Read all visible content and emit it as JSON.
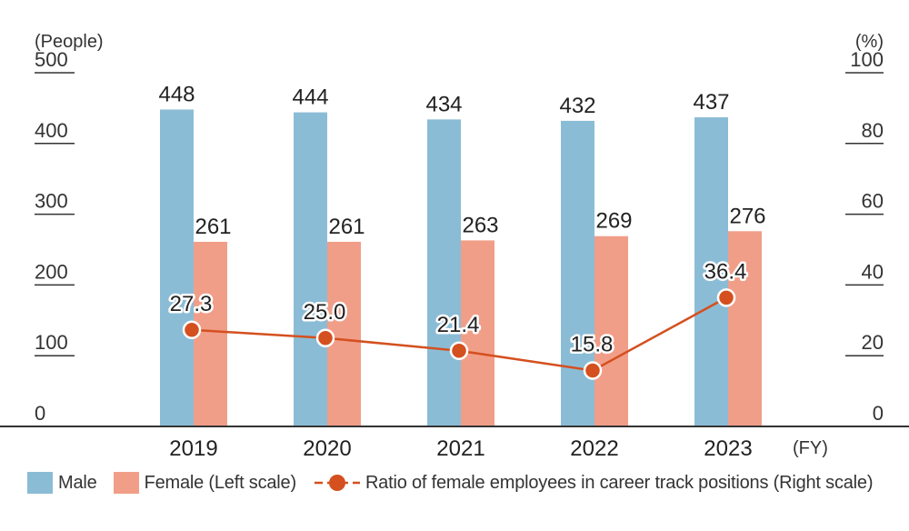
{
  "chart_data": {
    "type": "bar",
    "categories": [
      "2019",
      "2020",
      "2021",
      "2022",
      "2023"
    ],
    "x_unit": "(FY)",
    "left_axis": {
      "unit": "(People)",
      "range": [
        0,
        500
      ],
      "ticks": [
        "0",
        "100",
        "200",
        "300",
        "400",
        "500"
      ]
    },
    "right_axis": {
      "unit": "(%)",
      "range": [
        0,
        100
      ],
      "ticks": [
        "0",
        "20",
        "40",
        "60",
        "80",
        "100"
      ]
    },
    "series": [
      {
        "name": "Male",
        "kind": "bar",
        "axis": "left",
        "color": "#8bbcd6",
        "values": [
          448,
          444,
          434,
          432,
          437
        ]
      },
      {
        "name": "Female (Left scale)",
        "kind": "bar",
        "axis": "left",
        "color": "#f19e89",
        "values": [
          261,
          261,
          263,
          269,
          276
        ]
      },
      {
        "name": "Ratio of female employees in career track positions (Right scale)",
        "kind": "line",
        "axis": "right",
        "color": "#d4501f",
        "values": [
          27.3,
          25.0,
          21.4,
          15.8,
          36.4
        ],
        "labels": [
          "27.3",
          "25.0",
          "21.4",
          "15.8",
          "36.4"
        ]
      }
    ],
    "grid": false,
    "legend_position": "bottom-left"
  }
}
